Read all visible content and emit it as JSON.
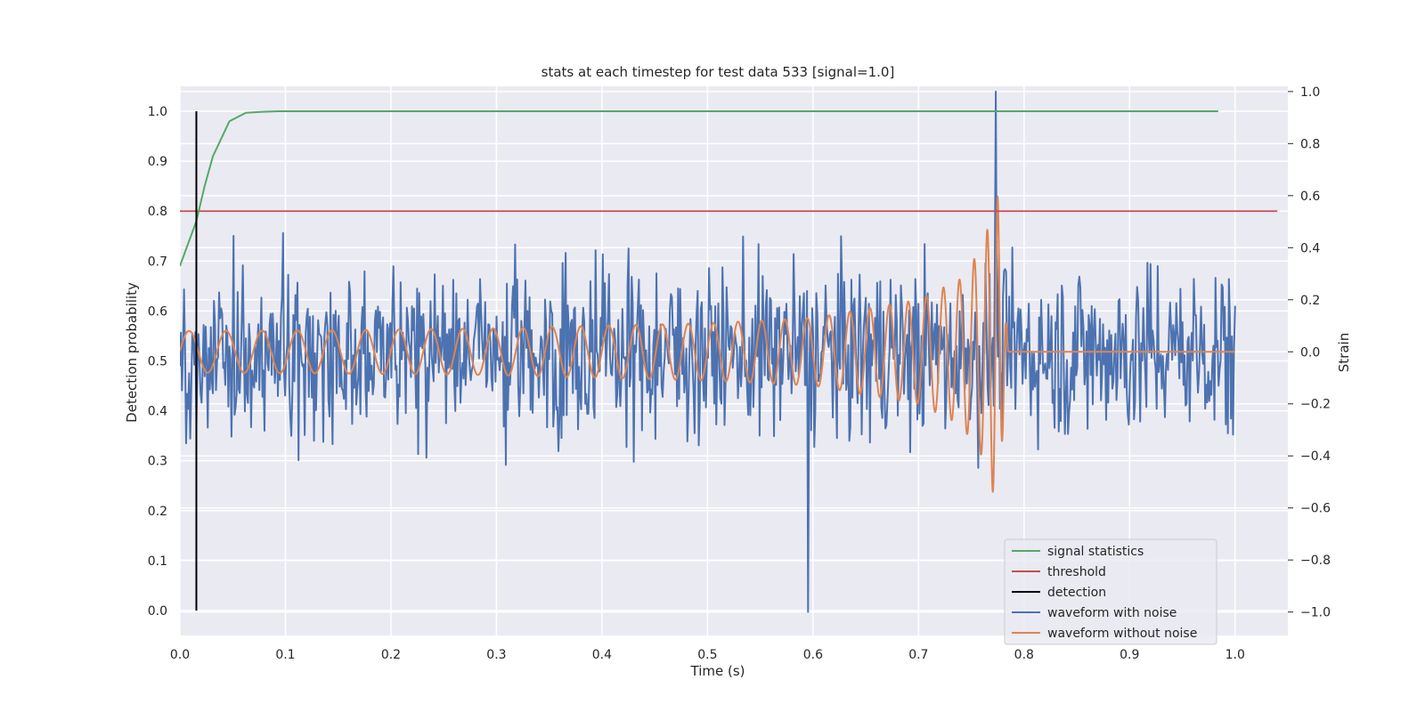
{
  "chart_data": {
    "type": "line",
    "title": "stats at each timestep for test data 533 [signal=1.0]",
    "xlabel": "Time (s)",
    "ylabel_left": "Detection probability",
    "ylabel_right": "Strain",
    "xlim": [
      0.0,
      1.05
    ],
    "ylim_left": [
      -0.05,
      1.05
    ],
    "ylim_right": [
      -1.09,
      1.02
    ],
    "x_ticks": [
      "0.0",
      "0.1",
      "0.2",
      "0.3",
      "0.4",
      "0.5",
      "0.6",
      "0.7",
      "0.8",
      "0.9",
      "1.0"
    ],
    "y_left_ticks": [
      "0.0",
      "0.1",
      "0.2",
      "0.3",
      "0.4",
      "0.5",
      "0.6",
      "0.7",
      "0.8",
      "0.9",
      "1.0"
    ],
    "y_right_ticks": [
      "−1.0",
      "−0.8",
      "−0.6",
      "−0.4",
      "−0.2",
      "0.0",
      "0.2",
      "0.4",
      "0.6",
      "0.8",
      "1.0"
    ],
    "grid": true,
    "legend_position": "lower-right",
    "colors": {
      "signal_statistics": "#55a868",
      "threshold": "#c44e52",
      "detection": "#000000",
      "waveform_with_noise": "#4c72b0",
      "waveform_without_noise": "#dd8452",
      "plot_background": "#eaeaf2",
      "grid": "#ffffff"
    },
    "series": [
      {
        "name": "signal statistics",
        "axis": "left",
        "x": [
          0.0,
          0.0156,
          0.0234,
          0.0313,
          0.0469,
          0.0625,
          0.0781,
          0.0938,
          0.1094,
          0.2,
          0.4,
          0.6,
          0.8,
          0.984
        ],
        "y": [
          0.69,
          0.78,
          0.85,
          0.91,
          0.98,
          0.997,
          0.999,
          1.0,
          1.0,
          1.0,
          1.0,
          1.0,
          1.0,
          1.0
        ]
      },
      {
        "name": "threshold",
        "axis": "left",
        "x": [
          0.0,
          1.04
        ],
        "y": [
          0.8,
          0.8
        ]
      },
      {
        "name": "detection",
        "axis": "left",
        "x": [
          0.0156,
          0.0156
        ],
        "y": [
          0.0,
          1.0
        ]
      },
      {
        "name": "waveform with noise",
        "axis": "right",
        "samples": 1024,
        "x_range": [
          0.0,
          1.0
        ],
        "std": 0.23,
        "min": -1.0,
        "max": 1.0,
        "min_at": 0.595,
        "max_at": 0.773
      },
      {
        "name": "waveform without noise",
        "axis": "right",
        "x": [
          0.0,
          0.1,
          0.2,
          0.3,
          0.4,
          0.5,
          0.6,
          0.7,
          0.74,
          0.76,
          0.775,
          0.785,
          1.0
        ],
        "amplitude": [
          0.08,
          0.082,
          0.085,
          0.09,
          0.1,
          0.11,
          0.13,
          0.2,
          0.28,
          0.4,
          0.6,
          0.0,
          0.0
        ],
        "frequency_hz": [
          28,
          30,
          32,
          35,
          38,
          42,
          48,
          58,
          68,
          80,
          110,
          130,
          0
        ]
      }
    ]
  }
}
